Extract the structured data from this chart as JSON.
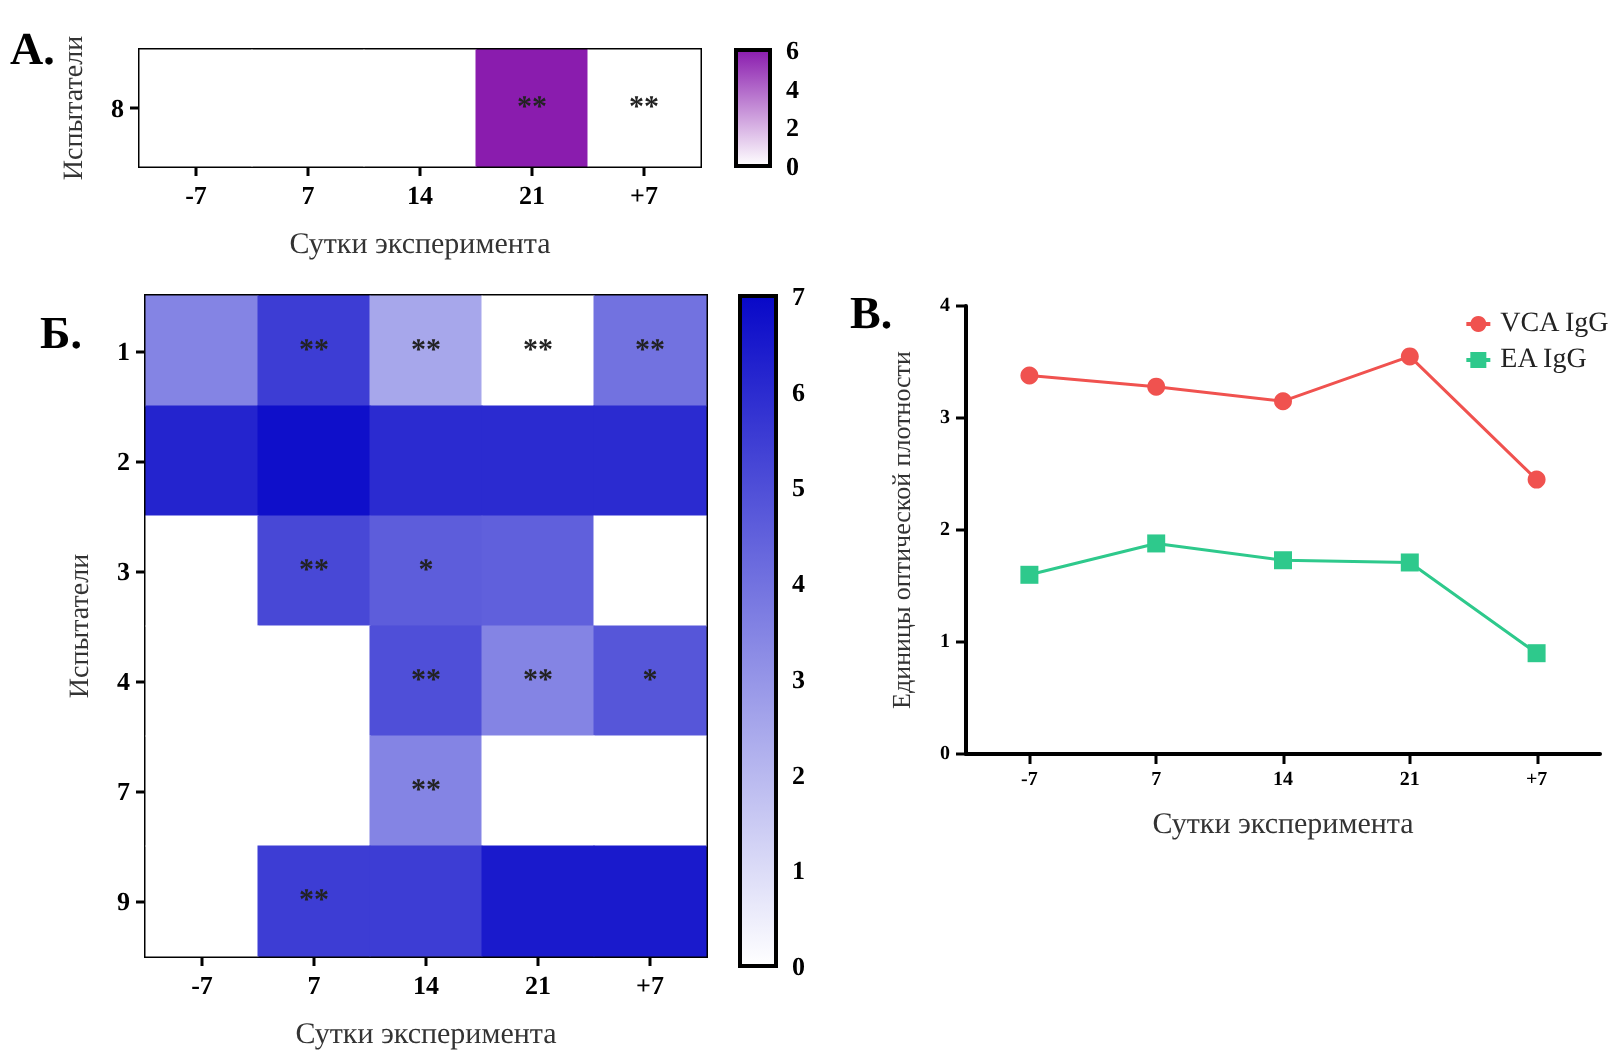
{
  "chart_data": [
    {
      "type": "heatmap",
      "title": "А.",
      "xlabel": "Сутки эксперимента",
      "ylabel": "Испытатели",
      "categories": [
        "-7",
        "7",
        "14",
        "21",
        "+7"
      ],
      "y_categories": [
        "8"
      ],
      "cells": [
        [
          0,
          0,
          0,
          6,
          0
        ]
      ],
      "cell_labels": [
        [
          null,
          null,
          null,
          "**",
          "**"
        ]
      ],
      "clim": [
        0,
        6
      ],
      "cticks": [
        0,
        2,
        4,
        6
      ],
      "color": "#8a1cae"
    },
    {
      "type": "heatmap",
      "title": "Б.",
      "xlabel": "Сутки эксперимента",
      "ylabel": "Испытатели",
      "categories": [
        "-7",
        "7",
        "14",
        "21",
        "+7"
      ],
      "y_categories": [
        "1",
        "2",
        "3",
        "4",
        "7",
        "9"
      ],
      "cells": [
        [
          3.5,
          5.5,
          2.5,
          0,
          4.0
        ],
        [
          6.2,
          6.8,
          6.0,
          6.0,
          6.0
        ],
        [
          0,
          5.2,
          4.6,
          4.5,
          0
        ],
        [
          0,
          0,
          5.0,
          3.5,
          4.8
        ],
        [
          0,
          0,
          3.5,
          0,
          0
        ],
        [
          0,
          5.5,
          5.5,
          6.5,
          6.5
        ]
      ],
      "cell_labels": [
        [
          null,
          "**",
          "**",
          "**",
          "**"
        ],
        [
          null,
          null,
          null,
          null,
          null
        ],
        [
          null,
          "**",
          "*",
          null,
          null
        ],
        [
          null,
          null,
          "**",
          "**",
          "*"
        ],
        [
          null,
          null,
          "**",
          null,
          null
        ],
        [
          null,
          "**",
          null,
          null,
          null
        ]
      ],
      "clim": [
        0,
        7
      ],
      "cticks": [
        0,
        1,
        2,
        3,
        4,
        5,
        6,
        7
      ],
      "color": "#0808c8"
    },
    {
      "type": "line",
      "title": "В.",
      "xlabel": "Сутки эксперимента",
      "ylabel": "Единицы оптической плотности",
      "categories": [
        "-7",
        "7",
        "14",
        "21",
        "+7"
      ],
      "series": [
        {
          "name": "VCA IgG",
          "color": "#f0524f",
          "marker": "circle",
          "values": [
            3.38,
            3.28,
            3.15,
            3.55,
            2.45
          ]
        },
        {
          "name": "EA IgG",
          "color": "#2ec98c",
          "marker": "square",
          "values": [
            1.6,
            1.88,
            1.73,
            1.71,
            0.9
          ]
        }
      ],
      "ylim": [
        0,
        4
      ],
      "yticks": [
        0,
        1,
        2,
        3,
        4
      ],
      "legend": "top right",
      "grid": false
    }
  ]
}
